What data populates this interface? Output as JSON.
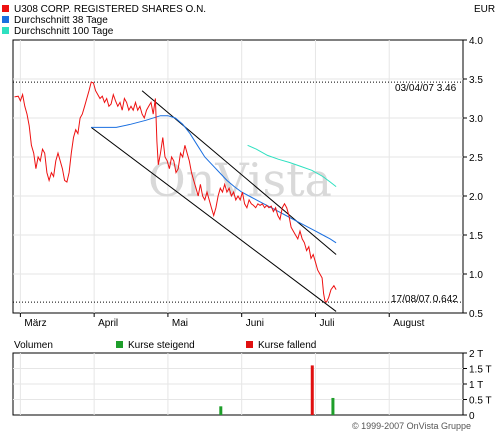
{
  "chart_data": {
    "type": "line",
    "legend": [
      {
        "name": "U308 CORP. REGISTERED SHARES O.N.",
        "color": "#ee1111"
      },
      {
        "name": "Durchschnitt 38 Tage",
        "color": "#1a6fe0"
      },
      {
        "name": "Durchschnitt 100 Tage",
        "color": "#2ee0c0"
      }
    ],
    "currency": "EUR",
    "watermark": "OnVista",
    "copyright": "© 1999-2007 OnVista Gruppe",
    "x_labels": [
      "März",
      "April",
      "Mai",
      "Juni",
      "Juli",
      "August"
    ],
    "x_month_starts": [
      0,
      1,
      2,
      3,
      4,
      5
    ],
    "x_range": [
      -0.1,
      6.0
    ],
    "y_ticks": [
      "0.5",
      "1.0",
      "1.5",
      "2.0",
      "2.5",
      "3.0",
      "3.5",
      "4.0"
    ],
    "y_tick_values": [
      0.5,
      1.0,
      1.5,
      2.0,
      2.5,
      3.0,
      3.5,
      4.0
    ],
    "ylim": [
      0.5,
      4.0
    ],
    "grid": true,
    "annotations": [
      {
        "text": "03/04/07 3.46",
        "y": 3.46
      },
      {
        "text": "17/08/07 0.642",
        "y": 0.64
      }
    ],
    "price": [
      [
        -0.08,
        3.27
      ],
      [
        -0.03,
        3.28
      ],
      [
        0.0,
        3.22
      ],
      [
        0.03,
        3.3
      ],
      [
        0.06,
        3.15
      ],
      [
        0.09,
        3.05
      ],
      [
        0.12,
        2.9
      ],
      [
        0.15,
        2.65
      ],
      [
        0.18,
        2.55
      ],
      [
        0.21,
        2.35
      ],
      [
        0.24,
        2.5
      ],
      [
        0.27,
        2.45
      ],
      [
        0.3,
        2.6
      ],
      [
        0.33,
        2.55
      ],
      [
        0.36,
        2.3
      ],
      [
        0.39,
        2.2
      ],
      [
        0.42,
        2.3
      ],
      [
        0.45,
        2.25
      ],
      [
        0.48,
        2.45
      ],
      [
        0.51,
        2.55
      ],
      [
        0.54,
        2.45
      ],
      [
        0.57,
        2.35
      ],
      [
        0.6,
        2.2
      ],
      [
        0.63,
        2.18
      ],
      [
        0.66,
        2.3
      ],
      [
        0.69,
        2.55
      ],
      [
        0.72,
        2.75
      ],
      [
        0.75,
        2.85
      ],
      [
        0.78,
        2.8
      ],
      [
        0.81,
        3.0
      ],
      [
        0.84,
        3.05
      ],
      [
        0.87,
        3.15
      ],
      [
        0.9,
        3.25
      ],
      [
        0.93,
        3.35
      ],
      [
        0.96,
        3.46
      ],
      [
        0.99,
        3.45
      ],
      [
        1.02,
        3.35
      ],
      [
        1.05,
        3.3
      ],
      [
        1.08,
        3.25
      ],
      [
        1.11,
        3.28
      ],
      [
        1.14,
        3.2
      ],
      [
        1.17,
        3.25
      ],
      [
        1.2,
        3.15
      ],
      [
        1.23,
        3.18
      ],
      [
        1.26,
        3.3
      ],
      [
        1.29,
        3.22
      ],
      [
        1.32,
        3.15
      ],
      [
        1.35,
        3.2
      ],
      [
        1.38,
        3.1
      ],
      [
        1.41,
        3.25
      ],
      [
        1.44,
        3.2
      ],
      [
        1.47,
        3.1
      ],
      [
        1.5,
        3.15
      ],
      [
        1.53,
        3.1
      ],
      [
        1.56,
        3.2
      ],
      [
        1.59,
        3.1
      ],
      [
        1.62,
        3.15
      ],
      [
        1.65,
        3.05
      ],
      [
        1.68,
        3.0
      ],
      [
        1.71,
        3.1
      ],
      [
        1.74,
        3.15
      ],
      [
        1.77,
        3.2
      ],
      [
        1.8,
        3.05
      ],
      [
        1.83,
        3.25
      ],
      [
        1.85,
        2.7
      ],
      [
        1.87,
        2.4
      ],
      [
        1.9,
        2.55
      ],
      [
        1.93,
        2.75
      ],
      [
        1.96,
        2.5
      ],
      [
        1.99,
        2.45
      ],
      [
        2.02,
        2.35
      ],
      [
        2.05,
        2.5
      ],
      [
        2.08,
        2.45
      ],
      [
        2.11,
        2.3
      ],
      [
        2.14,
        2.35
      ],
      [
        2.17,
        2.55
      ],
      [
        2.2,
        2.5
      ],
      [
        2.23,
        2.65
      ],
      [
        2.26,
        2.55
      ],
      [
        2.29,
        2.45
      ],
      [
        2.32,
        2.3
      ],
      [
        2.35,
        2.2
      ],
      [
        2.38,
        2.1
      ],
      [
        2.41,
        2.0
      ],
      [
        2.44,
        2.15
      ],
      [
        2.47,
        2.0
      ],
      [
        2.5,
        1.95
      ],
      [
        2.53,
        2.05
      ],
      [
        2.56,
        1.95
      ],
      [
        2.59,
        1.85
      ],
      [
        2.62,
        1.75
      ],
      [
        2.65,
        1.85
      ],
      [
        2.68,
        2.0
      ],
      [
        2.71,
        2.1
      ],
      [
        2.74,
        2.05
      ],
      [
        2.77,
        2.15
      ],
      [
        2.8,
        2.05
      ],
      [
        2.83,
        2.1
      ],
      [
        2.86,
        2.0
      ],
      [
        2.89,
        2.05
      ],
      [
        2.92,
        1.95
      ],
      [
        2.95,
        2.0
      ],
      [
        2.98,
        1.95
      ],
      [
        3.01,
        2.05
      ],
      [
        3.04,
        1.9
      ],
      [
        3.07,
        1.85
      ],
      [
        3.1,
        1.95
      ],
      [
        3.13,
        1.9
      ],
      [
        3.16,
        1.88
      ],
      [
        3.19,
        1.85
      ],
      [
        3.22,
        1.9
      ],
      [
        3.25,
        1.88
      ],
      [
        3.28,
        1.9
      ],
      [
        3.31,
        1.85
      ],
      [
        3.34,
        1.88
      ],
      [
        3.37,
        1.85
      ],
      [
        3.4,
        1.87
      ],
      [
        3.43,
        1.8
      ],
      [
        3.46,
        1.85
      ],
      [
        3.49,
        1.75
      ],
      [
        3.52,
        1.7
      ],
      [
        3.55,
        1.85
      ],
      [
        3.58,
        1.9
      ],
      [
        3.61,
        1.85
      ],
      [
        3.64,
        1.75
      ],
      [
        3.67,
        1.6
      ],
      [
        3.7,
        1.55
      ],
      [
        3.73,
        1.5
      ],
      [
        3.76,
        1.45
      ],
      [
        3.79,
        1.55
      ],
      [
        3.82,
        1.45
      ],
      [
        3.85,
        1.4
      ],
      [
        3.88,
        1.3
      ],
      [
        3.91,
        1.35
      ],
      [
        3.94,
        1.2
      ],
      [
        3.97,
        1.25
      ],
      [
        4.0,
        1.15
      ],
      [
        4.03,
        1.05
      ],
      [
        4.06,
        1.0
      ],
      [
        4.09,
        0.95
      ],
      [
        4.11,
        0.75
      ],
      [
        4.13,
        0.65
      ],
      [
        4.15,
        0.64
      ],
      [
        4.18,
        0.7
      ],
      [
        4.21,
        0.8
      ],
      [
        4.25,
        0.85
      ],
      [
        4.28,
        0.8
      ]
    ],
    "ma38": [
      [
        0.96,
        2.88
      ],
      [
        1.1,
        2.88
      ],
      [
        1.3,
        2.88
      ],
      [
        1.5,
        2.92
      ],
      [
        1.7,
        2.97
      ],
      [
        1.9,
        3.03
      ],
      [
        2.0,
        3.03
      ],
      [
        2.1,
        3.0
      ],
      [
        2.2,
        2.92
      ],
      [
        2.3,
        2.8
      ],
      [
        2.4,
        2.65
      ],
      [
        2.5,
        2.5
      ],
      [
        2.6,
        2.4
      ],
      [
        2.7,
        2.3
      ],
      [
        2.8,
        2.2
      ],
      [
        2.9,
        2.12
      ],
      [
        3.0,
        2.05
      ],
      [
        3.1,
        2.0
      ],
      [
        3.2,
        1.95
      ],
      [
        3.3,
        1.9
      ],
      [
        3.4,
        1.85
      ],
      [
        3.5,
        1.8
      ],
      [
        3.6,
        1.75
      ],
      [
        3.7,
        1.7
      ],
      [
        3.8,
        1.65
      ],
      [
        3.9,
        1.6
      ],
      [
        4.0,
        1.55
      ],
      [
        4.1,
        1.5
      ],
      [
        4.2,
        1.45
      ],
      [
        4.28,
        1.4
      ]
    ],
    "ma100": [
      [
        3.08,
        2.65
      ],
      [
        3.2,
        2.6
      ],
      [
        3.35,
        2.52
      ],
      [
        3.5,
        2.47
      ],
      [
        3.65,
        2.43
      ],
      [
        3.8,
        2.38
      ],
      [
        3.95,
        2.33
      ],
      [
        4.1,
        2.25
      ],
      [
        4.2,
        2.18
      ],
      [
        4.28,
        2.12
      ]
    ],
    "trend_upper": [
      [
        1.65,
        3.35
      ],
      [
        4.28,
        1.25
      ]
    ],
    "trend_lower": [
      [
        0.96,
        2.88
      ],
      [
        4.28,
        0.52
      ]
    ],
    "ref_lines": [
      3.46,
      0.64
    ],
    "volume": {
      "label": "Volumen",
      "legend": [
        {
          "name": "Kurse steigend",
          "color": "#1e9e2a"
        },
        {
          "name": "Kurse fallend",
          "color": "#e01010"
        }
      ],
      "y_ticks": [
        "0",
        "0.5 T",
        "1 T",
        "1.5 T",
        "2 T"
      ],
      "y_tick_values": [
        0,
        0.5,
        1.0,
        1.5,
        2.0
      ],
      "ylim": [
        0,
        2.0
      ],
      "bars": [
        {
          "x": 2.71,
          "value": 0.28,
          "dir": "up"
        },
        {
          "x": 3.95,
          "value": 1.6,
          "dir": "down"
        },
        {
          "x": 4.23,
          "value": 0.55,
          "dir": "up"
        }
      ]
    }
  }
}
